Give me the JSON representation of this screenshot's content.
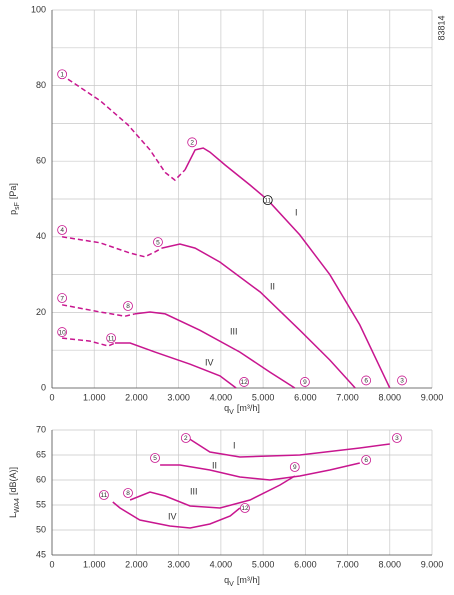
{
  "chart_data": [
    {
      "type": "line",
      "code": "83814",
      "y_label": {
        "main": "p",
        "sub": "sF",
        "unit": "[Pa]"
      },
      "x_label": {
        "main": "q",
        "sub": "V",
        "unit": "[m³/h]"
      },
      "xlim": [
        0,
        9000
      ],
      "xticks": [
        {
          "value": 0,
          "label": "0"
        },
        {
          "value": 1000,
          "label": "1.000"
        },
        {
          "value": 2000,
          "label": "2.000"
        },
        {
          "value": 3000,
          "label": "3.000"
        },
        {
          "value": 4000,
          "label": "4.000"
        },
        {
          "value": 5000,
          "label": "5.000"
        },
        {
          "value": 6000,
          "label": "6.000"
        },
        {
          "value": 7000,
          "label": "7.000"
        },
        {
          "value": 8000,
          "label": "8.000"
        },
        {
          "value": 9000,
          "label": "9.000"
        }
      ],
      "ylim": [
        0,
        100
      ],
      "yticks": [
        0,
        20,
        40,
        60,
        80,
        100
      ],
      "yminor": [
        10,
        30,
        50,
        70,
        90
      ],
      "grid": true,
      "series": [
        {
          "name": "I",
          "color": "#c8168f",
          "dashed": {
            "x": [
              380,
              1140,
              1800,
              2320,
              2680,
              2910,
              3150
            ],
            "values": [
              81.7,
              76,
              69.6,
              63,
              57,
              55,
              57.7
            ]
          },
          "x": [
            3150,
            3390,
            3580,
            3740,
            4100,
            4690,
            5110,
            5870,
            6580,
            7290,
            8000
          ],
          "values": [
            57.7,
            63,
            63.5,
            62.4,
            59,
            53.7,
            49.7,
            40.5,
            30,
            16.7,
            0
          ]
        },
        {
          "name": "II",
          "color": "#c8168f",
          "dashed": {
            "x": [
              240,
              1140,
              1850,
              2200,
              2440,
              2600
            ],
            "values": [
              40,
              38.4,
              35.7,
              34.7,
              36,
              37
            ]
          },
          "x": [
            2600,
            3030,
            3390,
            3980,
            4930,
            5870,
            6580,
            7180
          ],
          "values": [
            37,
            38.1,
            37,
            33.3,
            25.4,
            15.3,
            7.4,
            0
          ]
        },
        {
          "name": "III",
          "color": "#c8168f",
          "dashed": {
            "x": [
              240,
              1140,
              1730,
              1960
            ],
            "values": [
              22,
              20.1,
              19,
              19.6
            ]
          },
          "x": [
            1960,
            2320,
            2680,
            3500,
            4450,
            5160,
            5750
          ],
          "values": [
            19.6,
            20.1,
            19.6,
            15.3,
            9.5,
            4.2,
            0
          ]
        },
        {
          "name": "IV",
          "color": "#c8168f",
          "dashed": {
            "x": [
              240,
              900,
              1330,
              1490
            ],
            "values": [
              13.2,
              12.4,
              11.1,
              11.9
            ]
          },
          "x": [
            1490,
            1850,
            2440,
            3270,
            3980,
            4360
          ],
          "values": [
            11.9,
            11.9,
            9.5,
            6.3,
            3.2,
            0
          ]
        }
      ],
      "points": [
        {
          "label": "1",
          "x": 240,
          "y": 83,
          "color": "#c8168f"
        },
        {
          "label": "2",
          "x": 3320,
          "y": 65,
          "color": "#c8168f"
        },
        {
          "label": "3",
          "x": 8290,
          "y": 2,
          "color": "#c8168f"
        },
        {
          "label": "4",
          "x": 240,
          "y": 41.8,
          "color": "#c8168f"
        },
        {
          "label": "5",
          "x": 2510,
          "y": 38.6,
          "color": "#c8168f"
        },
        {
          "label": "6",
          "x": 7440,
          "y": 2,
          "color": "#c8168f"
        },
        {
          "label": "7",
          "x": 240,
          "y": 23.8,
          "color": "#c8168f"
        },
        {
          "label": "8",
          "x": 1800,
          "y": 21.7,
          "color": "#c8168f"
        },
        {
          "label": "9",
          "x": 5990,
          "y": 1.6,
          "color": "#c8168f"
        },
        {
          "label": "10",
          "x": 240,
          "y": 14.8,
          "color": "#c8168f"
        },
        {
          "label": "11",
          "x": 1400,
          "y": 13.2,
          "color": "#c8168f"
        },
        {
          "label": "12",
          "x": 4550,
          "y": 1.6,
          "color": "#c8168f"
        },
        {
          "label": "11",
          "x": 5110,
          "y": 49.7,
          "color": "#000000"
        }
      ]
    },
    {
      "type": "line",
      "y_label": {
        "main": "L",
        "sub": "WA4",
        "unit": "[dB(A)]"
      },
      "x_label": {
        "main": "q",
        "sub": "V",
        "unit": "[m³/h]"
      },
      "xlim": [
        0,
        9000
      ],
      "xticks": [
        {
          "value": 0,
          "label": "0"
        },
        {
          "value": 1000,
          "label": "1.000"
        },
        {
          "value": 2000,
          "label": "2.000"
        },
        {
          "value": 3000,
          "label": "3.000"
        },
        {
          "value": 4000,
          "label": "4.000"
        },
        {
          "value": 5000,
          "label": "5.000"
        },
        {
          "value": 6000,
          "label": "6.000"
        },
        {
          "value": 7000,
          "label": "7.000"
        },
        {
          "value": 8000,
          "label": "8.000"
        },
        {
          "value": 9000,
          "label": "9.000"
        }
      ],
      "ylim": [
        45,
        70
      ],
      "yticks": [
        45,
        50,
        55,
        60,
        65,
        70
      ],
      "grid": true,
      "series": [
        {
          "name": "I",
          "color": "#c8168f",
          "x": [
            3220,
            3740,
            4450,
            5870,
            7290,
            8000
          ],
          "values": [
            68.4,
            65.6,
            64.6,
            65,
            66.4,
            67.2
          ]
        },
        {
          "name": "II",
          "color": "#c8168f",
          "x": [
            2560,
            3030,
            3740,
            4450,
            5160,
            5870,
            6580,
            7290
          ],
          "values": [
            63,
            63,
            62,
            60.6,
            60,
            60.8,
            62,
            63.4
          ]
        },
        {
          "name": "III",
          "color": "#c8168f",
          "x": [
            1850,
            2320,
            2680,
            3270,
            3980,
            4690,
            5400,
            5750
          ],
          "values": [
            56,
            57.6,
            56.8,
            54.8,
            54.4,
            56,
            59,
            60.8
          ]
        },
        {
          "name": "IV",
          "color": "#c8168f",
          "x": [
            1440,
            1610,
            2080,
            2790,
            3270,
            3740,
            4220,
            4450
          ],
          "values": [
            55.6,
            54.4,
            52,
            50.8,
            50.4,
            51.2,
            52.8,
            54.4
          ]
        }
      ],
      "points": [
        {
          "label": "2",
          "x": 3170,
          "y": 68.4,
          "color": "#c8168f"
        },
        {
          "label": "3",
          "x": 8170,
          "y": 68.4,
          "color": "#c8168f"
        },
        {
          "label": "5",
          "x": 2440,
          "y": 64.4,
          "color": "#c8168f"
        },
        {
          "label": "6",
          "x": 7440,
          "y": 64,
          "color": "#c8168f"
        },
        {
          "label": "8",
          "x": 1800,
          "y": 57.4,
          "color": "#c8168f"
        },
        {
          "label": "9",
          "x": 5750,
          "y": 62.6,
          "color": "#c8168f"
        },
        {
          "label": "11",
          "x": 1230,
          "y": 57,
          "color": "#c8168f"
        },
        {
          "label": "12",
          "x": 4570,
          "y": 54.4,
          "color": "#c8168f"
        }
      ]
    }
  ]
}
